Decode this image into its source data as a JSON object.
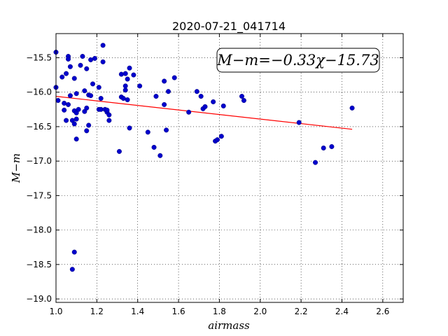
{
  "chart_data": {
    "type": "scatter",
    "title": "2020-07-21_041714",
    "xlabel": "airmass",
    "ylabel": "M−m",
    "xlim": [
      1.0,
      2.7
    ],
    "ylim": [
      -19.05,
      -15.15
    ],
    "y_inverted": true,
    "x_ticks": [
      "1.0",
      "1.2",
      "1.4",
      "1.6",
      "1.8",
      "2.0",
      "2.2",
      "2.4",
      "2.6"
    ],
    "y_ticks": [
      "−15.5",
      "−16.0",
      "−16.5",
      "−17.0",
      "−17.5",
      "−18.0",
      "−18.5",
      "−19.0"
    ],
    "grid": true,
    "annotation": "M−m=−0.33χ−15.73",
    "colors": {
      "points": "#0000cc",
      "fit": "#ff0000"
    },
    "fit": {
      "slope": -0.33,
      "intercept": -15.73,
      "x_range": [
        1.0,
        2.45
      ]
    },
    "points": [
      [
        1.0,
        -15.42
      ],
      [
        1.0,
        -15.93
      ],
      [
        1.01,
        -16.12
      ],
      [
        1.03,
        -15.78
      ],
      [
        1.04,
        -16.16
      ],
      [
        1.04,
        -16.26
      ],
      [
        1.05,
        -15.73
      ],
      [
        1.05,
        -16.41
      ],
      [
        1.06,
        -15.48
      ],
      [
        1.06,
        -15.52
      ],
      [
        1.06,
        -16.18
      ],
      [
        1.07,
        -15.63
      ],
      [
        1.07,
        -16.05
      ],
      [
        1.08,
        -16.41
      ],
      [
        1.08,
        -18.57
      ],
      [
        1.09,
        -16.46
      ],
      [
        1.09,
        -16.27
      ],
      [
        1.09,
        -15.8
      ],
      [
        1.09,
        -18.32
      ],
      [
        1.1,
        -16.02
      ],
      [
        1.1,
        -16.39
      ],
      [
        1.1,
        -16.68
      ],
      [
        1.1,
        -16.3
      ],
      [
        1.11,
        -16.25
      ],
      [
        1.12,
        -15.61
      ],
      [
        1.13,
        -15.48
      ],
      [
        1.14,
        -15.98
      ],
      [
        1.14,
        -16.28
      ],
      [
        1.15,
        -15.66
      ],
      [
        1.15,
        -16.56
      ],
      [
        1.15,
        -16.23
      ],
      [
        1.16,
        -16.04
      ],
      [
        1.16,
        -16.48
      ],
      [
        1.17,
        -16.05
      ],
      [
        1.17,
        -15.53
      ],
      [
        1.18,
        -15.88
      ],
      [
        1.19,
        -15.51
      ],
      [
        1.21,
        -15.93
      ],
      [
        1.21,
        -16.25
      ],
      [
        1.22,
        -16.09
      ],
      [
        1.22,
        -16.25
      ],
      [
        1.23,
        -15.56
      ],
      [
        1.23,
        -15.32
      ],
      [
        1.24,
        -16.25
      ],
      [
        1.25,
        -16.29
      ],
      [
        1.25,
        -16.26
      ],
      [
        1.26,
        -16.41
      ],
      [
        1.26,
        -16.33
      ],
      [
        1.31,
        -16.86
      ],
      [
        1.32,
        -16.07
      ],
      [
        1.32,
        -15.74
      ],
      [
        1.33,
        -16.09
      ],
      [
        1.34,
        -15.97
      ],
      [
        1.34,
        -15.91
      ],
      [
        1.34,
        -15.73
      ],
      [
        1.35,
        -15.81
      ],
      [
        1.35,
        -16.11
      ],
      [
        1.36,
        -16.52
      ],
      [
        1.36,
        -15.65
      ],
      [
        1.38,
        -15.75
      ],
      [
        1.41,
        -15.91
      ],
      [
        1.45,
        -16.58
      ],
      [
        1.48,
        -16.8
      ],
      [
        1.49,
        -16.06
      ],
      [
        1.51,
        -16.92
      ],
      [
        1.53,
        -16.18
      ],
      [
        1.53,
        -15.84
      ],
      [
        1.54,
        -16.55
      ],
      [
        1.55,
        -15.99
      ],
      [
        1.58,
        -15.79
      ],
      [
        1.65,
        -16.29
      ],
      [
        1.69,
        -15.99
      ],
      [
        1.71,
        -16.06
      ],
      [
        1.72,
        -16.24
      ],
      [
        1.73,
        -16.21
      ],
      [
        1.77,
        -16.14
      ],
      [
        1.78,
        -16.71
      ],
      [
        1.79,
        -16.69
      ],
      [
        1.81,
        -16.64
      ],
      [
        1.82,
        -16.2
      ],
      [
        1.91,
        -16.06
      ],
      [
        1.92,
        -16.12
      ],
      [
        2.19,
        -16.44
      ],
      [
        2.27,
        -17.02
      ],
      [
        2.31,
        -16.81
      ],
      [
        2.35,
        -16.79
      ],
      [
        2.45,
        -16.23
      ]
    ]
  }
}
